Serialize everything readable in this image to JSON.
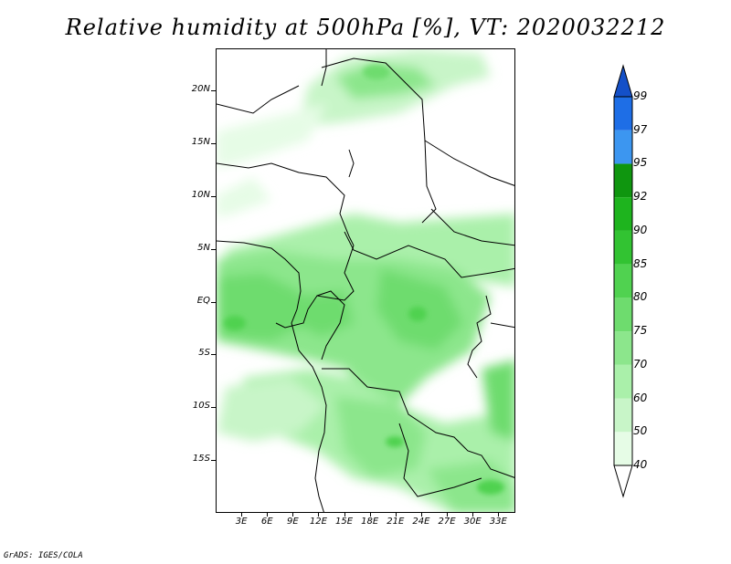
{
  "title": "Relative humidity at 500hPa [%], VT: 2020032212",
  "credit": "GrADS: IGES/COLA",
  "map": {
    "lon_range": [
      0,
      35
    ],
    "lat_range": [
      -20,
      24
    ],
    "lat_labels": [
      {
        "lat": 20,
        "text": "20N"
      },
      {
        "lat": 15,
        "text": "15N"
      },
      {
        "lat": 10,
        "text": "10N"
      },
      {
        "lat": 5,
        "text": "5N"
      },
      {
        "lat": 0,
        "text": "EQ"
      },
      {
        "lat": -5,
        "text": "5S"
      },
      {
        "lat": -10,
        "text": "10S"
      },
      {
        "lat": -15,
        "text": "15S"
      }
    ],
    "lon_labels": [
      {
        "lon": 3,
        "text": "3E"
      },
      {
        "lon": 6,
        "text": "6E"
      },
      {
        "lon": 9,
        "text": "9E"
      },
      {
        "lon": 12,
        "text": "12E"
      },
      {
        "lon": 15,
        "text": "15E"
      },
      {
        "lon": 18,
        "text": "18E"
      },
      {
        "lon": 21,
        "text": "21E"
      },
      {
        "lon": 24,
        "text": "24E"
      },
      {
        "lon": 27,
        "text": "27E"
      },
      {
        "lon": 30,
        "text": "30E"
      },
      {
        "lon": 33,
        "text": "33E"
      }
    ]
  },
  "colorbar": {
    "levels": [
      "40",
      "50",
      "60",
      "70",
      "75",
      "80",
      "85",
      "90",
      "92",
      "95",
      "97",
      "99"
    ],
    "colors": [
      "#ffffff",
      "#e6fce6",
      "#c8f5c8",
      "#aaf0aa",
      "#8ce68c",
      "#6edc6e",
      "#50d250",
      "#32c332",
      "#1eb41e",
      "#0f960f",
      "#3c96f0",
      "#1e6ee6",
      "#1450c8"
    ]
  },
  "colors": {
    "coast": "#000000",
    "background": "#ffffff"
  }
}
